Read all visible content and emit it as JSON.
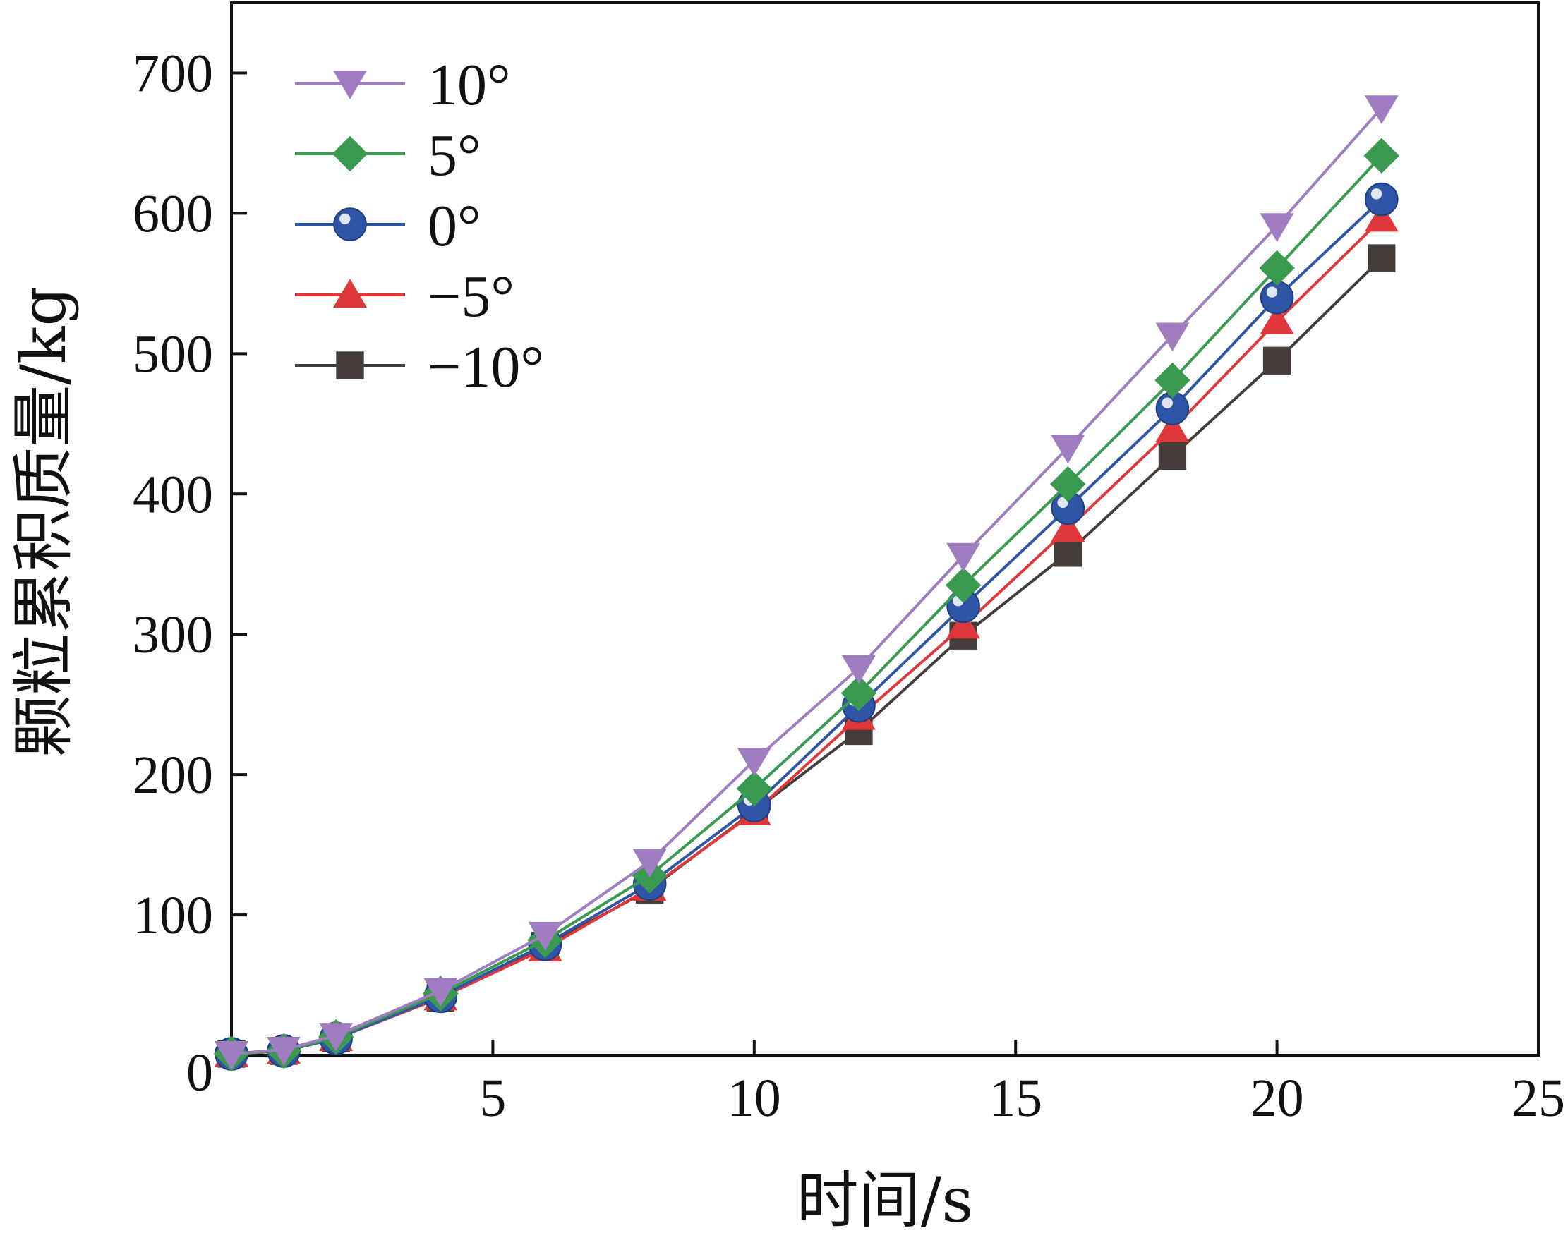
{
  "chart_data": {
    "type": "line",
    "title": "",
    "xlabel": "时间/s",
    "ylabel": "颗粒累积质量/kg",
    "xlim": [
      0,
      25
    ],
    "ylim": [
      0,
      750
    ],
    "xticks": [
      5,
      10,
      15,
      20,
      25
    ],
    "yticks": [
      100,
      200,
      300,
      400,
      500,
      600,
      700
    ],
    "origin_label": "0",
    "grid": false,
    "legend": "top-left",
    "x": [
      0,
      1,
      2,
      4,
      6,
      8,
      10,
      12,
      14,
      16,
      18,
      20,
      22
    ],
    "series": [
      {
        "name": "10°",
        "marker": "triangle-down",
        "color": "#a07cc0",
        "values": [
          1,
          4,
          14,
          46,
          86,
          138,
          210,
          276,
          356,
          433,
          513,
          591,
          675
        ]
      },
      {
        "name": "5°",
        "marker": "diamond",
        "color": "#3a9a50",
        "values": [
          1,
          3,
          13,
          44,
          82,
          128,
          190,
          258,
          335,
          407,
          481,
          561,
          641
        ]
      },
      {
        "name": "0°",
        "marker": "circle",
        "color": "#2f56a6",
        "values": [
          1,
          3,
          12,
          42,
          79,
          122,
          178,
          249,
          320,
          390,
          461,
          540,
          610
        ]
      },
      {
        "name": "−5°",
        "marker": "triangle-up",
        "color": "#e0373b",
        "values": [
          1,
          3,
          12,
          41,
          76,
          119,
          173,
          241,
          306,
          375,
          446,
          523,
          596
        ]
      },
      {
        "name": "−10°",
        "marker": "square",
        "color": "#453d3a",
        "values": [
          1,
          3,
          12,
          41,
          78,
          118,
          174,
          231,
          299,
          358,
          427,
          495,
          568
        ]
      }
    ]
  }
}
